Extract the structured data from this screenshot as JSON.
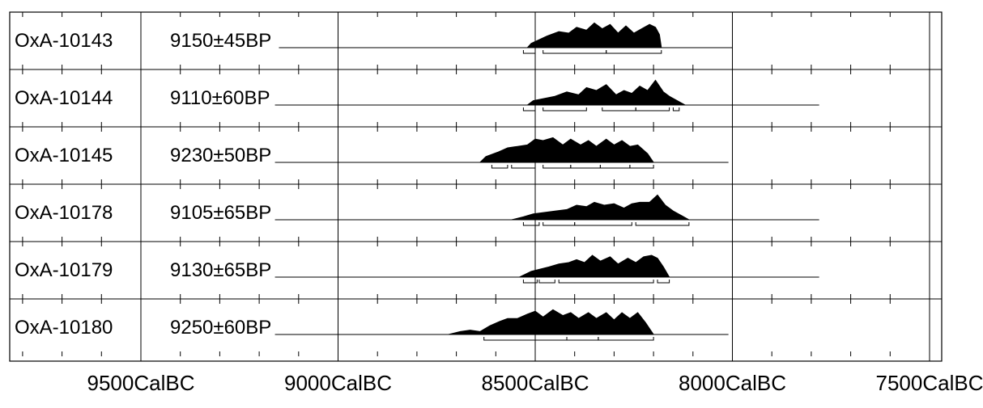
{
  "chart_data": {
    "type": "area",
    "title": "",
    "xlabel": "",
    "ylabel": "",
    "x_unit": "CalBC",
    "x_axis": {
      "reversed": true,
      "xlim": [
        9800,
        7450
      ],
      "major_ticks": [
        9500,
        9000,
        8500,
        8000,
        7500
      ],
      "minor_step": 100
    },
    "x_tick_labels": [
      "9500CalBC",
      "9000CalBC",
      "8500CalBC",
      "8000CalBC",
      "7500CalBC"
    ],
    "samples": [
      {
        "lab_id": "OxA-10143",
        "age": "9150±45BP",
        "range": [
          9150,
          8000
        ],
        "peaks": [
          [
            8510,
            0.15
          ],
          [
            8470,
            0.4
          ],
          [
            8440,
            0.55
          ],
          [
            8415,
            0.5
          ],
          [
            8395,
            0.7
          ],
          [
            8370,
            0.6
          ],
          [
            8350,
            0.85
          ],
          [
            8330,
            0.65
          ],
          [
            8310,
            0.8
          ],
          [
            8290,
            0.5
          ],
          [
            8270,
            0.75
          ],
          [
            8250,
            0.5
          ],
          [
            8230,
            0.65
          ],
          [
            8210,
            0.8
          ],
          [
            8195,
            0.7
          ],
          [
            8185,
            0.45
          ]
        ],
        "support": [
          8520,
          8180
        ],
        "brackets": [
          [
            8530,
            8500
          ],
          [
            8480,
            8320
          ],
          [
            8320,
            8180
          ]
        ]
      },
      {
        "lab_id": "OxA-10144",
        "age": "9110±60BP",
        "range": [
          9160,
          7780
        ],
        "peaks": [
          [
            8505,
            0.15
          ],
          [
            8450,
            0.3
          ],
          [
            8420,
            0.45
          ],
          [
            8390,
            0.35
          ],
          [
            8370,
            0.6
          ],
          [
            8345,
            0.5
          ],
          [
            8320,
            0.7
          ],
          [
            8295,
            0.35
          ],
          [
            8275,
            0.5
          ],
          [
            8255,
            0.4
          ],
          [
            8235,
            0.65
          ],
          [
            8215,
            0.5
          ],
          [
            8195,
            0.85
          ],
          [
            8175,
            0.45
          ],
          [
            8160,
            0.3
          ],
          [
            8140,
            0.15
          ]
        ],
        "support": [
          8520,
          8120
        ],
        "brackets": [
          [
            8530,
            8500
          ],
          [
            8480,
            8370
          ],
          [
            8330,
            8245
          ],
          [
            8245,
            8160
          ],
          [
            8150,
            8135
          ]
        ]
      },
      {
        "lab_id": "OxA-10145",
        "age": "9230±50BP",
        "range": [
          9160,
          8010
        ],
        "peaks": [
          [
            8625,
            0.2
          ],
          [
            8595,
            0.35
          ],
          [
            8570,
            0.5
          ],
          [
            8545,
            0.55
          ],
          [
            8520,
            0.6
          ],
          [
            8500,
            0.8
          ],
          [
            8480,
            0.75
          ],
          [
            8455,
            0.85
          ],
          [
            8430,
            0.6
          ],
          [
            8410,
            0.8
          ],
          [
            8385,
            0.6
          ],
          [
            8365,
            0.75
          ],
          [
            8345,
            0.55
          ],
          [
            8320,
            0.8
          ],
          [
            8300,
            0.6
          ],
          [
            8280,
            0.75
          ],
          [
            8260,
            0.55
          ],
          [
            8240,
            0.6
          ],
          [
            8215,
            0.3
          ]
        ],
        "support": [
          8640,
          8200
        ],
        "brackets": [
          [
            8610,
            8570
          ],
          [
            8560,
            8500
          ],
          [
            8480,
            8410
          ],
          [
            8410,
            8335
          ],
          [
            8335,
            8260
          ],
          [
            8260,
            8200
          ]
        ]
      },
      {
        "lab_id": "OxA-10178",
        "age": "9105±65BP",
        "range": [
          9160,
          7780
        ],
        "peaks": [
          [
            8530,
            0.1
          ],
          [
            8505,
            0.2
          ],
          [
            8450,
            0.3
          ],
          [
            8420,
            0.35
          ],
          [
            8395,
            0.5
          ],
          [
            8370,
            0.45
          ],
          [
            8350,
            0.6
          ],
          [
            8325,
            0.5
          ],
          [
            8300,
            0.55
          ],
          [
            8275,
            0.4
          ],
          [
            8255,
            0.55
          ],
          [
            8235,
            0.6
          ],
          [
            8210,
            0.6
          ],
          [
            8190,
            0.85
          ],
          [
            8170,
            0.5
          ],
          [
            8150,
            0.3
          ],
          [
            8130,
            0.15
          ]
        ],
        "support": [
          8560,
          8110
        ],
        "brackets": [
          [
            8530,
            8490
          ],
          [
            8480,
            8400
          ],
          [
            8400,
            8255
          ],
          [
            8245,
            8110
          ]
        ]
      },
      {
        "lab_id": "OxA-10179",
        "age": "9130±65BP",
        "range": [
          9160,
          7780
        ],
        "peaks": [
          [
            8510,
            0.2
          ],
          [
            8465,
            0.35
          ],
          [
            8440,
            0.45
          ],
          [
            8415,
            0.5
          ],
          [
            8395,
            0.6
          ],
          [
            8375,
            0.5
          ],
          [
            8355,
            0.75
          ],
          [
            8335,
            0.55
          ],
          [
            8310,
            0.7
          ],
          [
            8290,
            0.45
          ],
          [
            8265,
            0.65
          ],
          [
            8245,
            0.5
          ],
          [
            8225,
            0.7
          ],
          [
            8205,
            0.75
          ],
          [
            8190,
            0.65
          ],
          [
            8175,
            0.35
          ]
        ],
        "support": [
          8540,
          8160
        ],
        "brackets": [
          [
            8530,
            8495
          ],
          [
            8490,
            8450
          ],
          [
            8440,
            8200
          ],
          [
            8190,
            8160
          ]
        ]
      },
      {
        "lab_id": "OxA-10180",
        "age": "9250±60BP",
        "range": [
          9160,
          8010
        ],
        "peaks": [
          [
            8690,
            0.1
          ],
          [
            8665,
            0.15
          ],
          [
            8640,
            0.1
          ],
          [
            8615,
            0.3
          ],
          [
            8590,
            0.45
          ],
          [
            8570,
            0.55
          ],
          [
            8545,
            0.55
          ],
          [
            8520,
            0.7
          ],
          [
            8500,
            0.8
          ],
          [
            8480,
            0.6
          ],
          [
            8455,
            0.85
          ],
          [
            8430,
            0.65
          ],
          [
            8410,
            0.75
          ],
          [
            8390,
            0.55
          ],
          [
            8365,
            0.75
          ],
          [
            8345,
            0.55
          ],
          [
            8320,
            0.75
          ],
          [
            8300,
            0.5
          ],
          [
            8280,
            0.75
          ],
          [
            8260,
            0.55
          ],
          [
            8240,
            0.75
          ],
          [
            8220,
            0.4
          ]
        ],
        "support": [
          8720,
          8200
        ],
        "brackets": [
          [
            8630,
            8420
          ],
          [
            8420,
            8340
          ],
          [
            8340,
            8200
          ]
        ]
      }
    ]
  }
}
